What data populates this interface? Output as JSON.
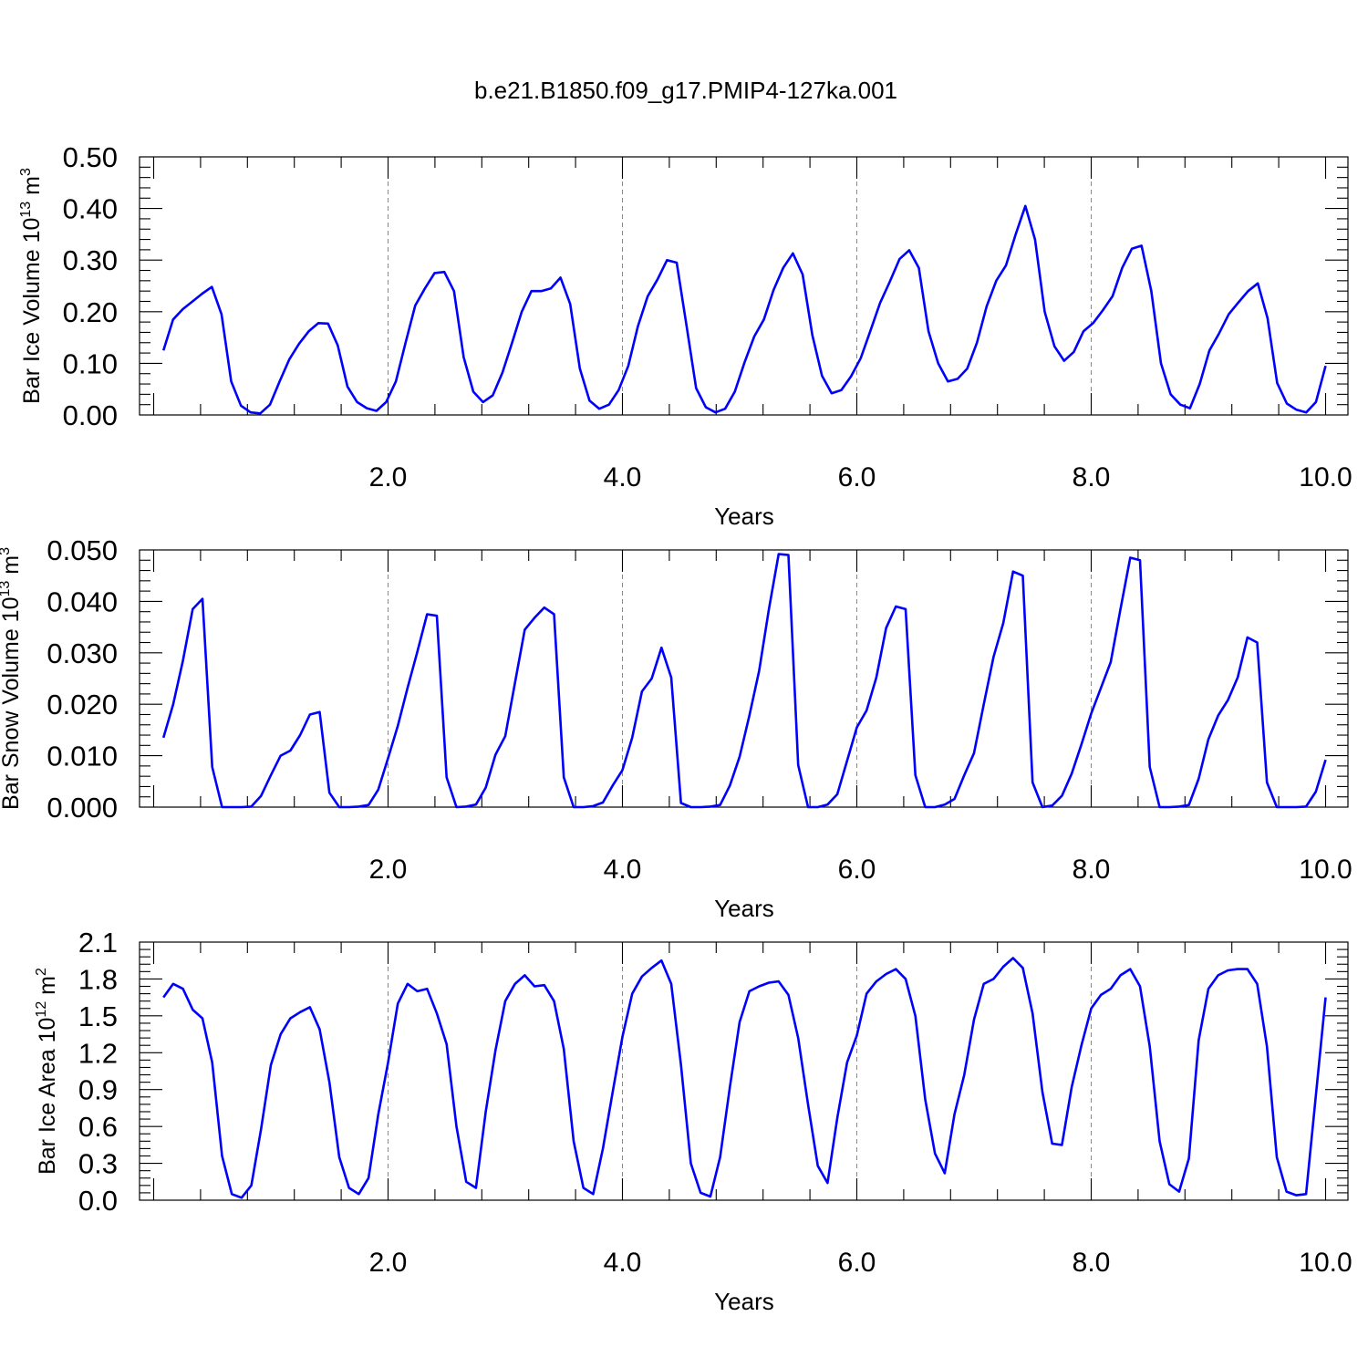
{
  "title": "b.e21.B1850.f09_g17.PMIP4-127ka.001",
  "colors": {
    "line": "#0000ff",
    "axis": "#000000",
    "grid": "#888888"
  },
  "chart_data": [
    {
      "type": "line",
      "ylabel": "Bar Ice Volume 10",
      "ylabel_sup": "13",
      "ylabel_unit": " m",
      "ylabel_unit_sup": "3",
      "xlabel": "Years",
      "xlim": [
        0.0833,
        10.0
      ],
      "ylim": [
        0,
        0.5
      ],
      "xticks": [
        "2.0",
        "4.0",
        "6.0",
        "8.0",
        "10.0"
      ],
      "yticks": [
        "0.00",
        "0.10",
        "0.20",
        "0.30",
        "0.40",
        "0.50"
      ],
      "grid": "dashed vertical lines at major x ticks",
      "y": [
        0.125,
        0.185,
        0.205,
        0.22,
        0.235,
        0.248,
        0.195,
        0.065,
        0.018,
        0.005,
        0.003,
        0.02,
        0.065,
        0.108,
        0.138,
        0.162,
        0.178,
        0.177,
        0.135,
        0.055,
        0.025,
        0.013,
        0.008,
        0.025,
        0.065,
        0.14,
        0.212,
        0.245,
        0.275,
        0.277,
        0.24,
        0.112,
        0.045,
        0.025,
        0.038,
        0.082,
        0.14,
        0.2,
        0.24,
        0.24,
        0.245,
        0.266,
        0.215,
        0.09,
        0.028,
        0.012,
        0.02,
        0.048,
        0.095,
        0.172,
        0.23,
        0.262,
        0.3,
        0.295,
        0.175,
        0.052,
        0.015,
        0.005,
        0.012,
        0.045,
        0.102,
        0.152,
        0.185,
        0.242,
        0.285,
        0.313,
        0.272,
        0.155,
        0.076,
        0.042,
        0.048,
        0.075,
        0.11,
        0.163,
        0.217,
        0.258,
        0.302,
        0.319,
        0.285,
        0.162,
        0.1,
        0.065,
        0.07,
        0.09,
        0.14,
        0.21,
        0.26,
        0.29,
        0.35,
        0.405,
        0.34,
        0.2,
        0.133,
        0.105,
        0.122,
        0.162,
        0.178,
        0.203,
        0.23,
        0.285,
        0.322,
        0.328,
        0.24,
        0.1,
        0.04,
        0.02,
        0.013,
        0.06,
        0.125,
        0.158,
        0.195,
        0.218,
        0.24,
        0.255,
        0.188,
        0.062,
        0.022,
        0.01,
        0.005,
        0.025,
        0.095
      ]
    },
    {
      "type": "line",
      "ylabel": "Bar Snow Volume 10",
      "ylabel_sup": "13",
      "ylabel_unit": " m",
      "ylabel_unit_sup": "3",
      "xlabel": "Years",
      "xlim": [
        0.0833,
        10.0
      ],
      "ylim": [
        0,
        0.05
      ],
      "xticks": [
        "2.0",
        "4.0",
        "6.0",
        "8.0",
        "10.0"
      ],
      "yticks": [
        "0.000",
        "0.010",
        "0.020",
        "0.030",
        "0.040",
        "0.050"
      ],
      "grid": "dashed vertical lines at major x ticks",
      "y": [
        0.0135,
        0.02,
        0.0285,
        0.0385,
        0.0405,
        0.0078,
        0.0,
        0.0,
        0.0,
        0.0001,
        0.0022,
        0.0062,
        0.01,
        0.011,
        0.014,
        0.018,
        0.0185,
        0.0028,
        0.0,
        0.0,
        0.0001,
        0.0004,
        0.0034,
        0.0095,
        0.0158,
        0.0232,
        0.0302,
        0.0375,
        0.0372,
        0.0058,
        0.0,
        0.0001,
        0.0005,
        0.0038,
        0.0102,
        0.0138,
        0.0242,
        0.0345,
        0.0368,
        0.0388,
        0.0375,
        0.0058,
        0.0,
        0.0,
        0.0002,
        0.0009,
        0.0042,
        0.0072,
        0.0135,
        0.0225,
        0.025,
        0.031,
        0.0252,
        0.0008,
        0.0,
        0.0,
        0.0001,
        0.0004,
        0.0042,
        0.0098,
        0.0178,
        0.0265,
        0.0385,
        0.0492,
        0.049,
        0.0082,
        0.0,
        0.0,
        0.0005,
        0.0025,
        0.009,
        0.0155,
        0.0188,
        0.0252,
        0.0348,
        0.039,
        0.0385,
        0.0062,
        0.0,
        0.0,
        0.0005,
        0.0016,
        0.0062,
        0.0105,
        0.02,
        0.0292,
        0.0358,
        0.0458,
        0.045,
        0.0048,
        0.0,
        0.0003,
        0.0022,
        0.0065,
        0.0122,
        0.0182,
        0.0232,
        0.0282,
        0.0385,
        0.0485,
        0.048,
        0.0078,
        0.0,
        0.0,
        0.0001,
        0.0004,
        0.0055,
        0.0132,
        0.0178,
        0.0208,
        0.0252,
        0.033,
        0.032,
        0.0048,
        0.0,
        0.0,
        0.0,
        0.0001,
        0.003,
        0.0092
      ]
    },
    {
      "type": "line",
      "ylabel": "Bar Ice Area 10",
      "ylabel_sup": "12",
      "ylabel_unit": " m",
      "ylabel_unit_sup": "2",
      "xlabel": "Years",
      "xlim": [
        0.0833,
        10.0
      ],
      "ylim": [
        0,
        2.1
      ],
      "xticks": [
        "2.0",
        "4.0",
        "6.0",
        "8.0",
        "10.0"
      ],
      "yticks": [
        "0.0",
        "0.3",
        "0.6",
        "0.9",
        "1.2",
        "1.5",
        "1.8",
        "2.1"
      ],
      "grid": "dashed vertical lines at major x ticks",
      "y": [
        1.65,
        1.76,
        1.72,
        1.55,
        1.48,
        1.12,
        0.36,
        0.05,
        0.02,
        0.12,
        0.58,
        1.1,
        1.35,
        1.48,
        1.53,
        1.57,
        1.39,
        0.96,
        0.35,
        0.1,
        0.05,
        0.18,
        0.7,
        1.12,
        1.6,
        1.76,
        1.7,
        1.72,
        1.52,
        1.27,
        0.6,
        0.15,
        0.1,
        0.72,
        1.22,
        1.62,
        1.76,
        1.83,
        1.74,
        1.75,
        1.62,
        1.23,
        0.48,
        0.1,
        0.05,
        0.42,
        0.88,
        1.33,
        1.68,
        1.82,
        1.89,
        1.95,
        1.76,
        1.1,
        0.3,
        0.06,
        0.03,
        0.35,
        0.92,
        1.45,
        1.7,
        1.74,
        1.77,
        1.78,
        1.67,
        1.32,
        0.78,
        0.28,
        0.14,
        0.67,
        1.12,
        1.34,
        1.68,
        1.78,
        1.84,
        1.88,
        1.8,
        1.5,
        0.82,
        0.38,
        0.22,
        0.7,
        1.02,
        1.47,
        1.76,
        1.8,
        1.9,
        1.97,
        1.89,
        1.52,
        0.88,
        0.46,
        0.45,
        0.92,
        1.26,
        1.56,
        1.67,
        1.72,
        1.83,
        1.88,
        1.74,
        1.25,
        0.48,
        0.13,
        0.07,
        0.34,
        1.3,
        1.72,
        1.83,
        1.87,
        1.88,
        1.88,
        1.76,
        1.25,
        0.35,
        0.07,
        0.04,
        0.05,
        0.85,
        1.65
      ]
    }
  ]
}
